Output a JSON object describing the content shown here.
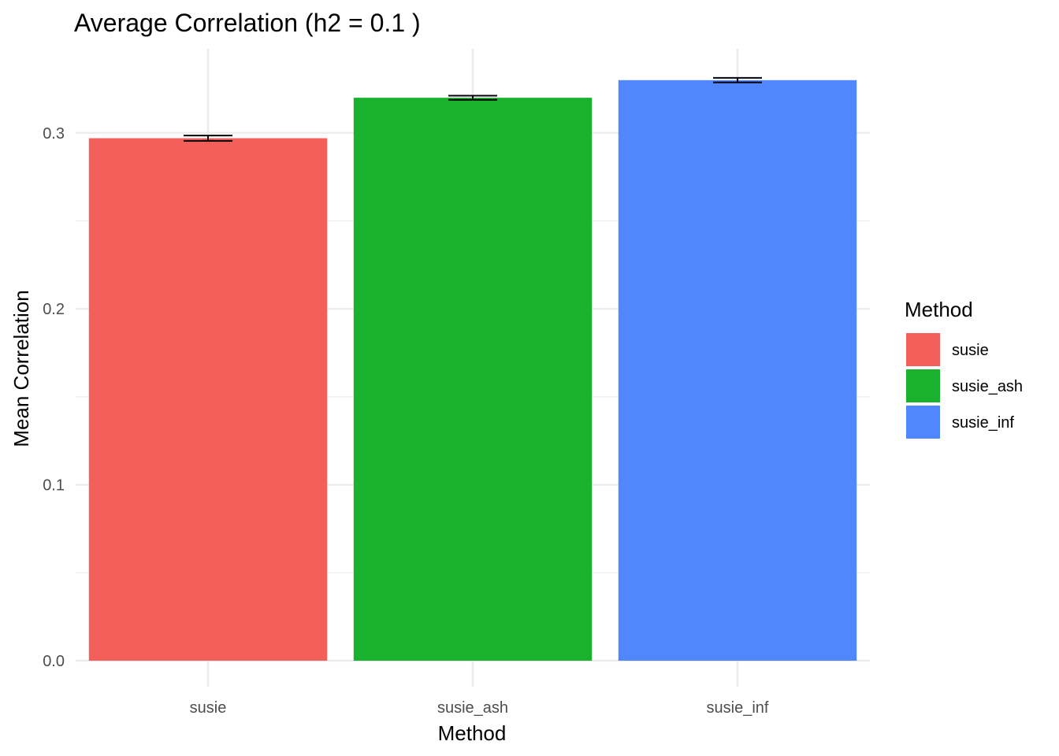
{
  "chart_data": {
    "type": "bar",
    "title": "Average Correlation (h2 = 0.1 )",
    "xlabel": "Method",
    "ylabel": "Mean Correlation",
    "categories": [
      "susie",
      "susie_ash",
      "susie_inf"
    ],
    "values": [
      0.297,
      0.32,
      0.33
    ],
    "error": [
      0.0015,
      0.0012,
      0.0013
    ],
    "colors": [
      "#F8766D",
      "#00BA38",
      "#619CFF"
    ],
    "fill_colors": [
      "#F35F5B",
      "#1AB12F",
      "#5087FF"
    ],
    "ylim": [
      0,
      0.34
    ],
    "yticks": [
      0.0,
      0.1,
      0.2,
      0.3
    ],
    "ytick_labels": [
      "0.0",
      "0.1",
      "0.2",
      "0.3"
    ],
    "grid": true,
    "legend": {
      "title": "Method",
      "position": "right",
      "entries": [
        "susie",
        "susie_ash",
        "susie_inf"
      ]
    }
  }
}
